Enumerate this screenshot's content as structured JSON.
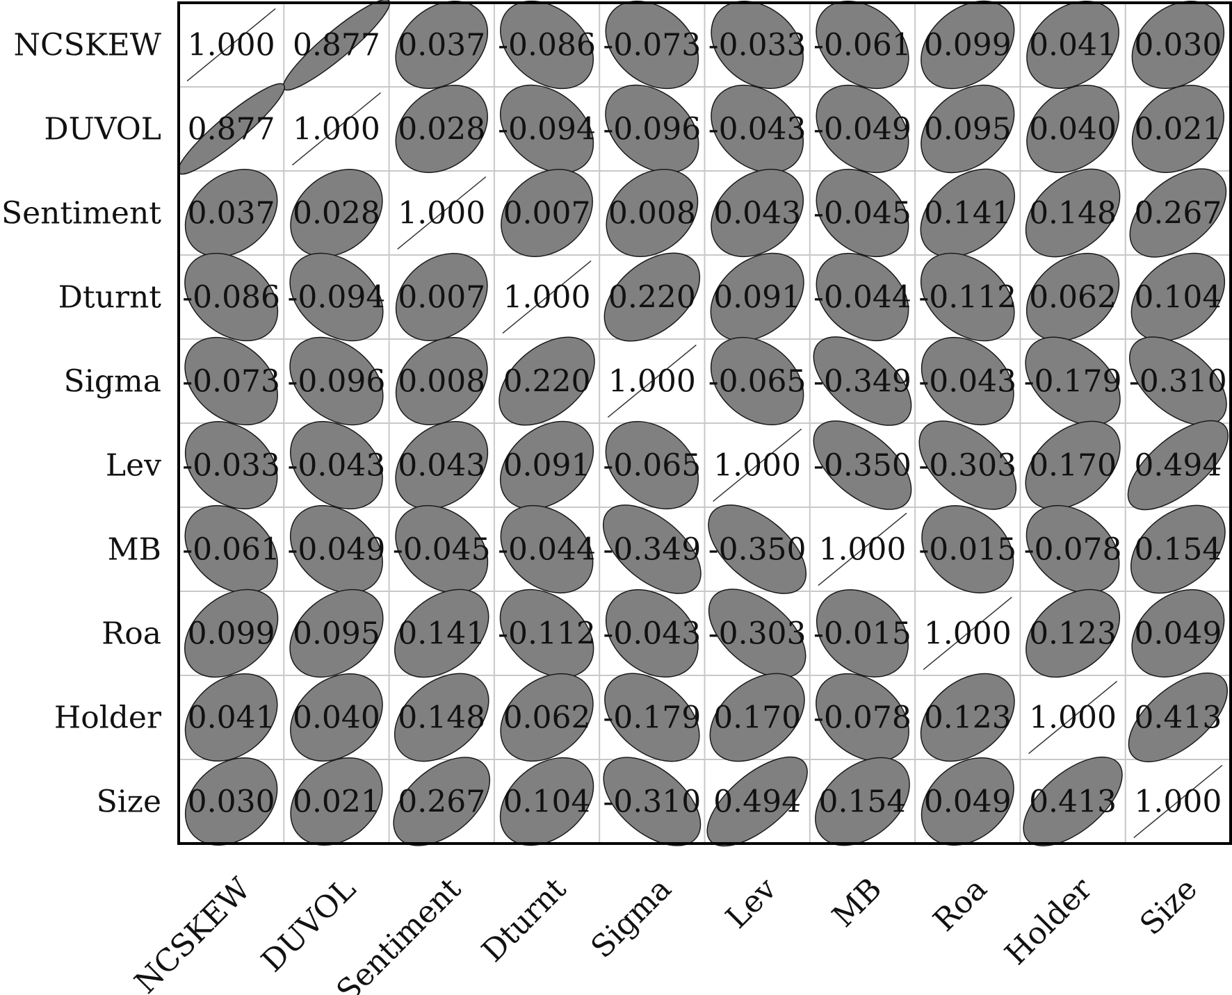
{
  "chart_data": {
    "type": "heatmap",
    "subtype": "correlation-ellipse-matrix",
    "variables": [
      "NCSKEW",
      "DUVOL",
      "Sentiment",
      "Dturnt",
      "Sigma",
      "Lev",
      "MB",
      "Roa",
      "Holder",
      "Size"
    ],
    "matrix": [
      [
        1.0,
        0.877,
        0.037,
        -0.086,
        -0.073,
        -0.033,
        -0.061,
        0.099,
        0.041,
        0.03
      ],
      [
        0.877,
        1.0,
        0.028,
        -0.094,
        -0.096,
        -0.043,
        -0.049,
        0.095,
        0.04,
        0.021
      ],
      [
        0.037,
        0.028,
        1.0,
        0.007,
        0.008,
        0.043,
        -0.045,
        0.141,
        0.148,
        0.267
      ],
      [
        -0.086,
        -0.094,
        0.007,
        1.0,
        0.22,
        0.091,
        -0.044,
        -0.112,
        0.062,
        0.104
      ],
      [
        -0.073,
        -0.096,
        0.008,
        0.22,
        1.0,
        -0.065,
        -0.349,
        -0.043,
        -0.179,
        -0.31
      ],
      [
        -0.033,
        -0.043,
        0.043,
        0.091,
        -0.065,
        1.0,
        -0.35,
        -0.303,
        0.17,
        0.494
      ],
      [
        -0.061,
        -0.049,
        -0.045,
        -0.044,
        -0.349,
        -0.35,
        1.0,
        -0.015,
        -0.078,
        0.154
      ],
      [
        0.099,
        0.095,
        0.141,
        -0.112,
        -0.043,
        -0.303,
        -0.015,
        1.0,
        0.123,
        0.049
      ],
      [
        0.041,
        0.04,
        0.148,
        0.062,
        -0.179,
        0.17,
        -0.078,
        0.123,
        1.0,
        0.413
      ],
      [
        0.03,
        0.021,
        0.267,
        0.104,
        -0.31,
        0.494,
        0.154,
        0.049,
        0.413,
        1.0
      ]
    ],
    "value_format": "decimal-3",
    "diagonal_style": "line",
    "ellipse_color": "#808080",
    "grid": true,
    "title": "",
    "xlabel": "",
    "ylabel": ""
  }
}
